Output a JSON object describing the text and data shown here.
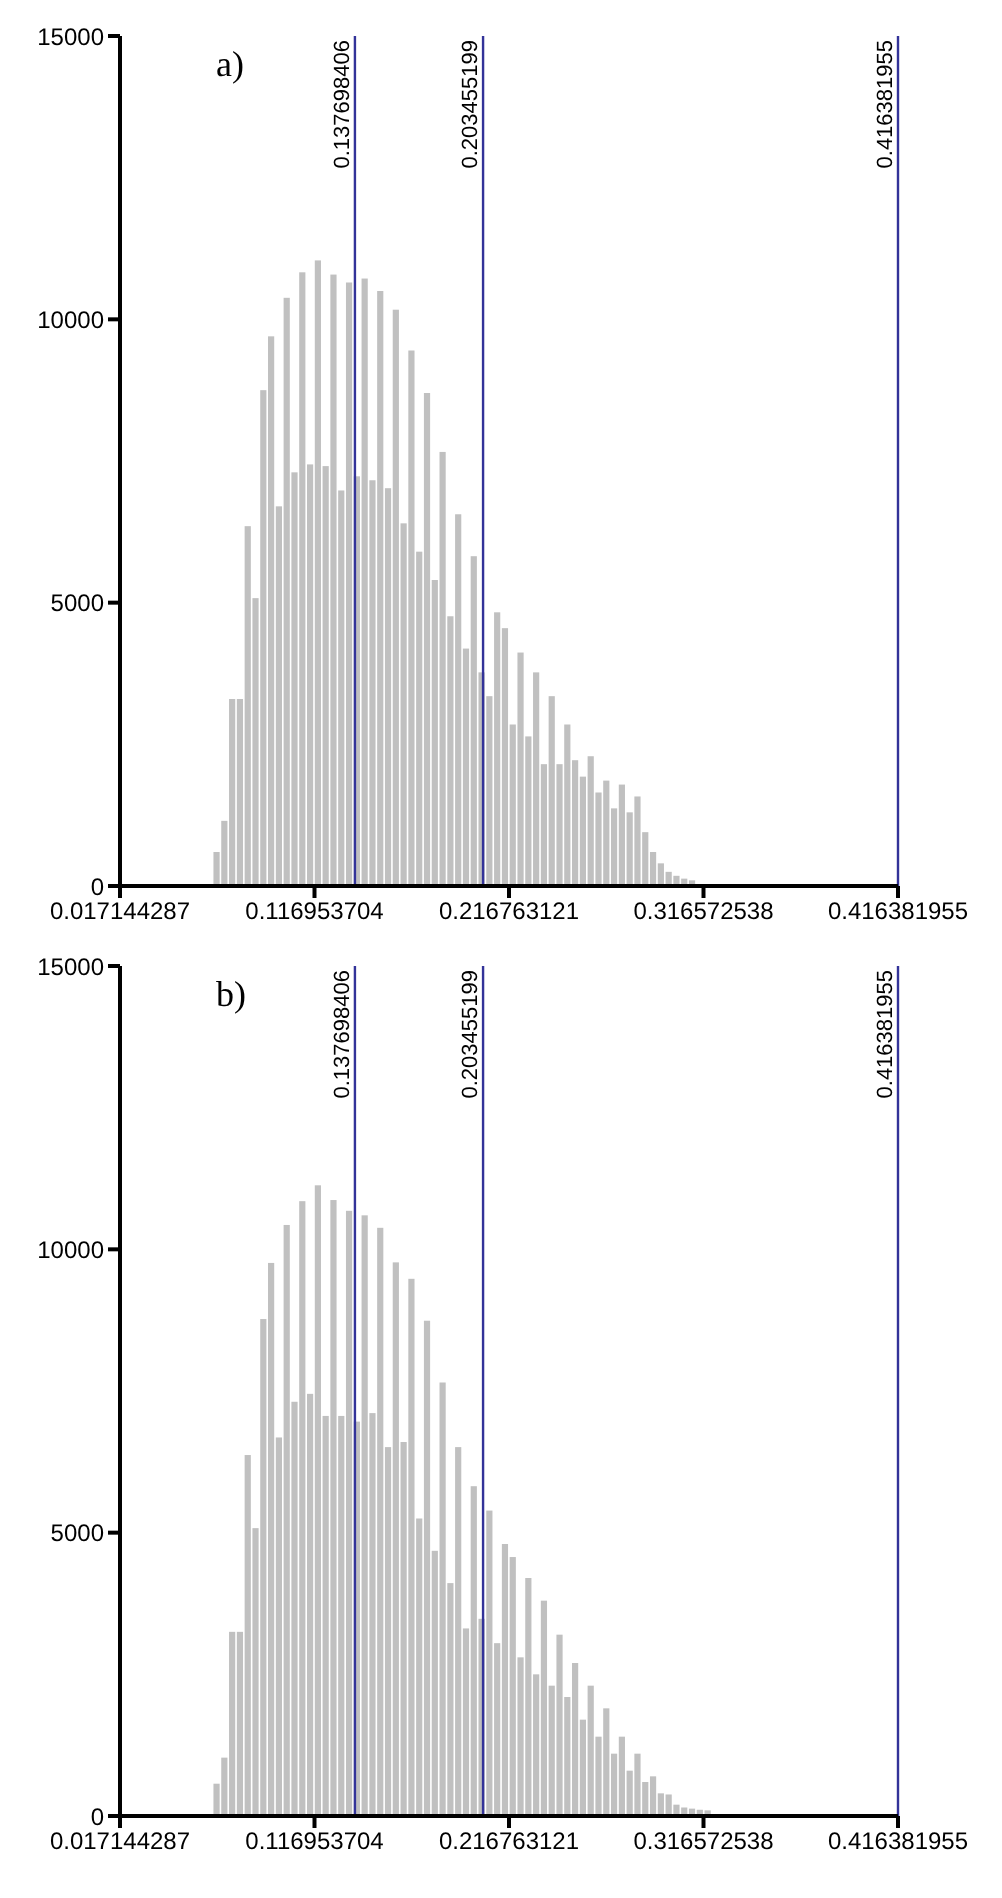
{
  "chart_data": [
    {
      "type": "histogram",
      "title": "a)",
      "color": "#c0c0c0",
      "bins": [
        0.0651,
        0.0691,
        0.0731,
        0.0771,
        0.0811,
        0.0851,
        0.0891,
        0.0931,
        0.0971,
        0.1011,
        0.1051,
        0.1091,
        0.1131,
        0.1171,
        0.1211,
        0.1251,
        0.1291,
        0.1331,
        0.1371,
        0.1411,
        0.1451,
        0.1491,
        0.1531,
        0.1571,
        0.1611,
        0.1651,
        0.1691,
        0.1731,
        0.1771,
        0.1811,
        0.1851,
        0.1891,
        0.1931,
        0.1971,
        0.2011,
        0.2051,
        0.2091,
        0.2131,
        0.2171,
        0.2211,
        0.2251,
        0.2291,
        0.2331,
        0.2371,
        0.2411,
        0.2451,
        0.2491,
        0.2531,
        0.2571,
        0.2611,
        0.2651,
        0.2691,
        0.2731,
        0.2771,
        0.2811,
        0.2851,
        0.2891,
        0.2931,
        0.2971,
        0.3011,
        0.3051,
        0.3091,
        0.3131
      ],
      "values": [
        600,
        1150,
        3300,
        3300,
        6350,
        5080,
        8750,
        9700,
        6700,
        10380,
        7300,
        10830,
        7440,
        11040,
        7410,
        10790,
        6980,
        10650,
        7230,
        10720,
        7160,
        10500,
        7020,
        10170,
        6400,
        9450,
        5900,
        8700,
        5400,
        7660,
        4760,
        6560,
        4190,
        5820,
        3770,
        3350,
        4830,
        4550,
        2850,
        4120,
        2640,
        3770,
        2150,
        3350,
        2150,
        2850,
        2220,
        1930,
        2290,
        1650,
        1860,
        1370,
        1790,
        1300,
        1580,
        950,
        600,
        400,
        250,
        180,
        130,
        100
      ],
      "xlim": [
        0.017144287,
        0.416381955
      ],
      "xticks": [
        0.017144287,
        0.116953704,
        0.216763121,
        0.316572538,
        0.416381955
      ],
      "ylim": [
        0,
        15000
      ],
      "yticks": [
        0,
        5000,
        10000,
        15000
      ],
      "ref_lines": [
        {
          "axis": "x",
          "value": 0.137698406,
          "label": "0.137698406",
          "color": "#333399"
        },
        {
          "axis": "x",
          "value": 0.203455199,
          "label": "0.203455199",
          "color": "#333399"
        },
        {
          "axis": "x",
          "value": 0.416381955,
          "label": "0.416381955",
          "color": "#333399"
        }
      ]
    },
    {
      "type": "histogram",
      "title": "b)",
      "color": "#c0c0c0",
      "bins": [
        0.0651,
        0.0691,
        0.0731,
        0.0771,
        0.0811,
        0.0851,
        0.0891,
        0.0931,
        0.0971,
        0.1011,
        0.1051,
        0.1091,
        0.1131,
        0.1171,
        0.1211,
        0.1251,
        0.1291,
        0.1331,
        0.1371,
        0.1411,
        0.1451,
        0.1491,
        0.1531,
        0.1571,
        0.1611,
        0.1651,
        0.1691,
        0.1731,
        0.1771,
        0.1811,
        0.1851,
        0.1891,
        0.1931,
        0.1971,
        0.2011,
        0.2051,
        0.2091,
        0.2131,
        0.2171,
        0.2211,
        0.2251,
        0.2291,
        0.2331,
        0.2371,
        0.2411,
        0.2451,
        0.2491,
        0.2531,
        0.2571,
        0.2611,
        0.2651,
        0.2691,
        0.2731,
        0.2771,
        0.2811,
        0.2851,
        0.2891,
        0.2931,
        0.2971,
        0.3011,
        0.3051,
        0.3091,
        0.3131,
        0.3171,
        0.3211
      ],
      "values": [
        570,
        1030,
        3250,
        3250,
        6370,
        5080,
        8770,
        9760,
        6680,
        10430,
        7310,
        10850,
        7450,
        11130,
        7060,
        10870,
        7060,
        10680,
        6960,
        10600,
        7110,
        10380,
        6510,
        9770,
        6600,
        9480,
        5250,
        8740,
        4680,
        7650,
        4110,
        6510,
        3310,
        5820,
        3480,
        5390,
        3050,
        4800,
        4570,
        2800,
        4200,
        2500,
        3800,
        2300,
        3200,
        2100,
        2700,
        1700,
        2300,
        1400,
        1900,
        1100,
        1400,
        800,
        1100,
        600,
        700,
        400,
        380,
        200,
        150,
        130,
        110,
        100
      ],
      "xlim": [
        0.017144287,
        0.416381955
      ],
      "xticks": [
        0.017144287,
        0.116953704,
        0.216763121,
        0.316572538,
        0.416381955
      ],
      "ylim": [
        0,
        15000
      ],
      "yticks": [
        0,
        5000,
        10000,
        15000
      ],
      "ref_lines": [
        {
          "axis": "x",
          "value": 0.137698406,
          "label": "0.137698406",
          "color": "#333399"
        },
        {
          "axis": "x",
          "value": 0.203455199,
          "label": "0.203455199",
          "color": "#333399"
        },
        {
          "axis": "x",
          "value": 0.416381955,
          "label": "0.416381955",
          "color": "#333399"
        }
      ]
    }
  ]
}
